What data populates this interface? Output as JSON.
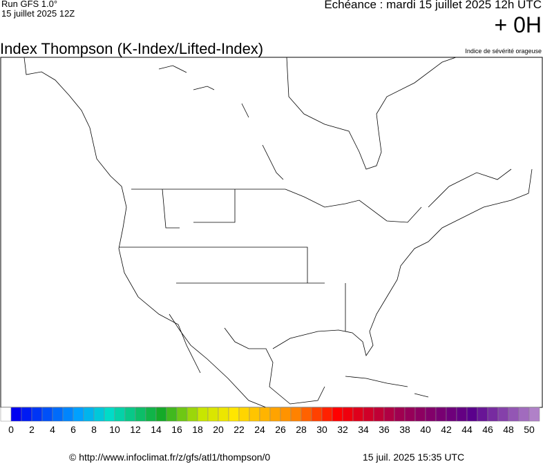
{
  "header": {
    "run": "Run GFS 1.0°",
    "run_date": "15 juillet 2025 12Z",
    "echeance": "Echéance : mardi 15 juillet 2025 12h UTC",
    "offset": "+ 0H"
  },
  "title": "Index Thompson (K-Index/Lifted-Index)",
  "subtitle": "Indice de sévérité orageuse",
  "legend": {
    "labels": [
      0,
      2,
      4,
      6,
      8,
      10,
      12,
      14,
      16,
      18,
      20,
      22,
      24,
      26,
      28,
      30,
      32,
      34,
      36,
      38,
      40,
      42,
      44,
      46,
      48,
      50
    ]
  },
  "footer": {
    "url": "© http://www.infoclimat.fr/z/gfs/atl1/thompson/0",
    "timestamp": "15 juil. 2025 15:35 UTC"
  }
}
